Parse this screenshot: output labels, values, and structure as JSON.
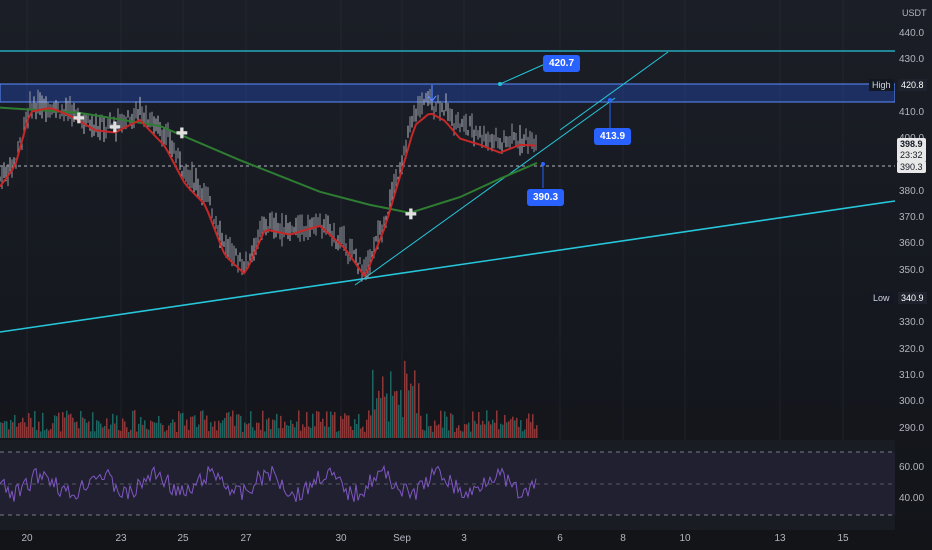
{
  "currency": "USDT",
  "price_ticks": [
    "440.0",
    "430.0",
    "420.0",
    "410.0",
    "400.0",
    "390.0",
    "380.0",
    "370.0",
    "360.0",
    "350.0",
    "340.0",
    "330.0",
    "320.0",
    "310.0",
    "300.0",
    "290.0"
  ],
  "rsi_ticks": [
    "60.00",
    "40.00"
  ],
  "date_ticks": [
    "20",
    "23",
    "25",
    "27",
    "30",
    "Sep",
    "3",
    "6",
    "8",
    "10",
    "13",
    "15"
  ],
  "high": {
    "label": "High",
    "value": "420.8"
  },
  "low": {
    "label": "Low",
    "value": "340.9"
  },
  "last_price": {
    "value": "398.9",
    "countdown": "23:32"
  },
  "level_390": "390.3",
  "callouts": [
    {
      "name": "callout-420",
      "text": "420.7"
    },
    {
      "name": "callout-413",
      "text": "413.9"
    },
    {
      "name": "callout-390",
      "text": "390.3"
    }
  ],
  "colors": {
    "bg": "#131722",
    "cyan": "#26c6da",
    "ema_fast": "#e53935",
    "ema_slow": "#2e7d32",
    "rsi": "#7e57c2",
    "band": "#2962ff",
    "up": "#26a69a",
    "down": "#ef5350"
  }
}
